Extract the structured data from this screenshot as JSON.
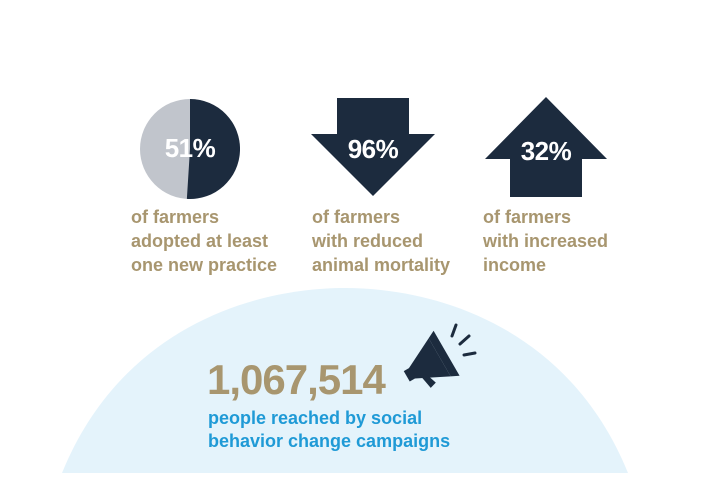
{
  "stats": [
    {
      "value": "51%",
      "caption_lines": [
        "of farmers",
        "adopted at least",
        "one new practice"
      ],
      "shape": "pie-icon",
      "fraction": 0.51
    },
    {
      "value": "96%",
      "caption_lines": [
        "of farmers",
        "with reduced",
        "animal mortality"
      ],
      "shape": "arrow-down-icon"
    },
    {
      "value": "32%",
      "caption_lines": [
        "of farmers",
        "with increased",
        "income"
      ],
      "shape": "arrow-up-icon"
    }
  ],
  "reach": {
    "number": "1,067,514",
    "caption_lines": [
      "people reached by social",
      "behavior change campaigns"
    ],
    "icon": "megaphone-icon"
  },
  "colors": {
    "navy": "#1c2b3e",
    "gray": "#c1c5cc",
    "gold": "#a8966f",
    "blue": "#1f9ad6",
    "dome": "#e4f3fb"
  }
}
